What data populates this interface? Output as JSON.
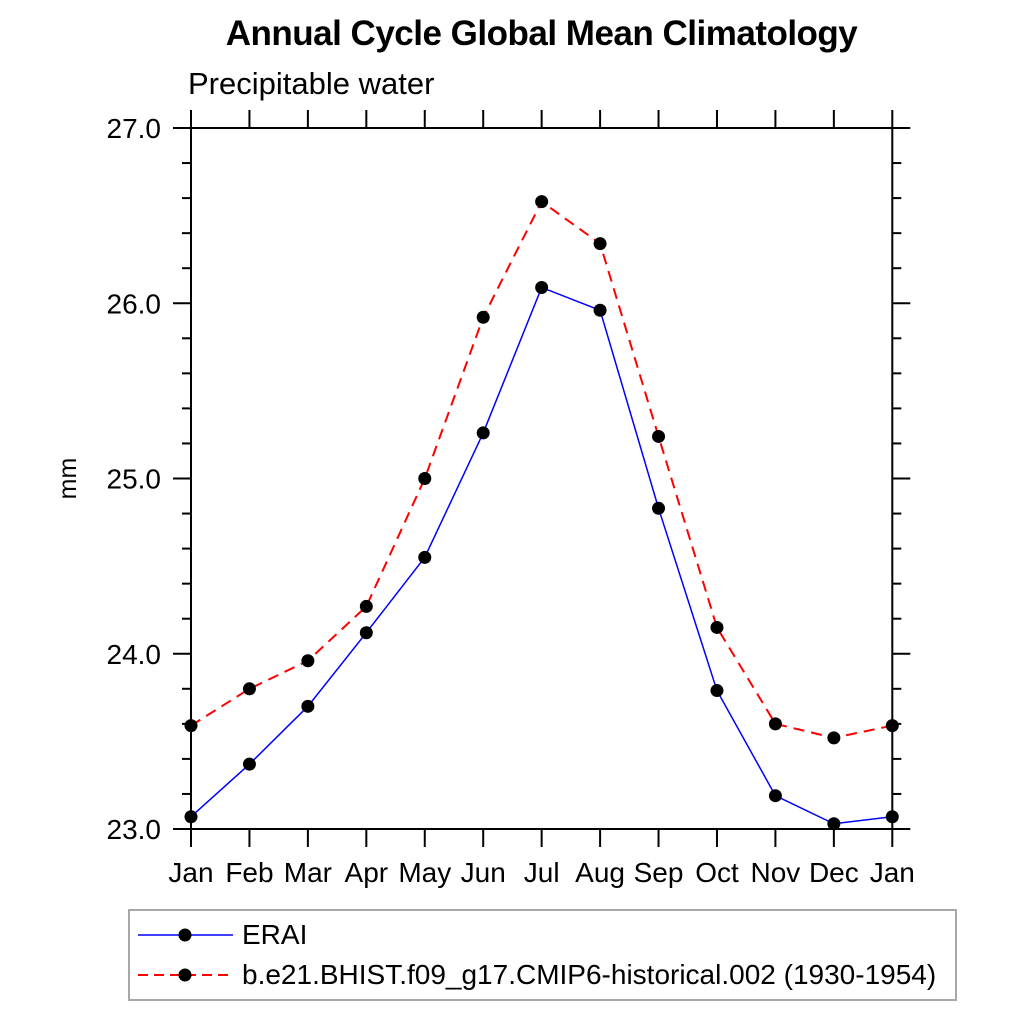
{
  "title": "Annual Cycle Global Mean Climatology",
  "subtitle": "Precipitable water",
  "chart_data": {
    "type": "line",
    "categories": [
      "Jan",
      "Feb",
      "Mar",
      "Apr",
      "May",
      "Jun",
      "Jul",
      "Aug",
      "Sep",
      "Oct",
      "Nov",
      "Dec",
      "Jan"
    ],
    "xlabel": "",
    "ylabel": "mm",
    "ylim": [
      23.0,
      27.0
    ],
    "yticks": [
      23.0,
      24.0,
      25.0,
      26.0,
      27.0
    ],
    "ytick_labels": [
      "23.0",
      "24.0",
      "25.0",
      "26.0",
      "27.0"
    ],
    "y_minor_tick_interval": 0.2,
    "grid": false,
    "legend_position": "below-plot-boxed",
    "axis_color": "#000000",
    "marker": {
      "shape": "circle",
      "color": "#000000",
      "radius": 6.5
    },
    "series": [
      {
        "name": "ERAI",
        "color": "#0000ff",
        "line_style": "solid",
        "line_width": 1.5,
        "values": [
          23.07,
          23.37,
          23.7,
          24.12,
          24.55,
          25.26,
          26.09,
          25.96,
          24.83,
          23.79,
          23.19,
          23.03,
          23.07
        ]
      },
      {
        "name": "b.e21.BHIST.f09_g17.CMIP6-historical.002 (1930-1954)",
        "color": "#ff0000",
        "line_style": "dashed",
        "line_width": 2,
        "values": [
          23.59,
          23.8,
          23.96,
          24.27,
          25.0,
          25.92,
          26.58,
          26.34,
          25.24,
          24.15,
          23.6,
          23.52,
          23.59
        ]
      }
    ]
  }
}
